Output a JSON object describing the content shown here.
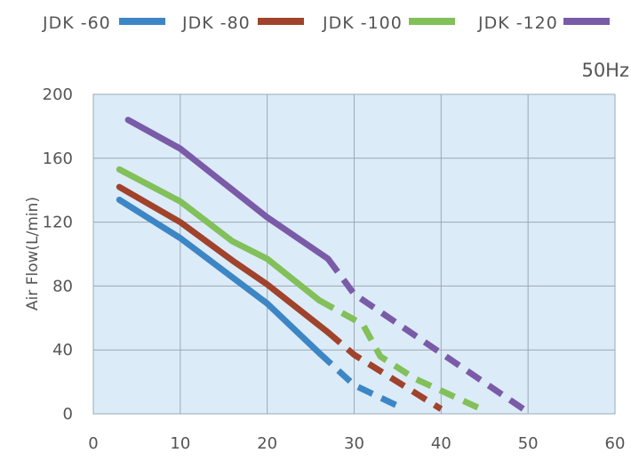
{
  "chart_data": {
    "type": "line",
    "title": "",
    "annotation": "50Hz",
    "xlabel": "",
    "ylabel": "Air Flow(L/min)",
    "xlim": [
      0,
      60
    ],
    "ylim": [
      0,
      200
    ],
    "xticks": [
      0,
      10,
      20,
      30,
      40,
      50,
      60
    ],
    "yticks": [
      0,
      40,
      80,
      120,
      160,
      200
    ],
    "grid": true,
    "legend_position": "top",
    "series": [
      {
        "name": "JDK -60",
        "color": "#3d86c6",
        "solid": [
          [
            3,
            134
          ],
          [
            10,
            110
          ],
          [
            20,
            69
          ],
          [
            26,
            38
          ]
        ],
        "dashed": [
          [
            26,
            38
          ],
          [
            30,
            18
          ],
          [
            35,
            5
          ]
        ]
      },
      {
        "name": "JDK -80",
        "color": "#a0432c",
        "solid": [
          [
            3,
            142
          ],
          [
            10,
            120
          ],
          [
            16,
            96
          ],
          [
            20,
            81
          ],
          [
            27,
            51
          ]
        ],
        "dashed": [
          [
            27,
            51
          ],
          [
            30,
            37
          ],
          [
            35,
            20
          ],
          [
            40,
            3
          ]
        ]
      },
      {
        "name": "JDK -100",
        "color": "#82c05a",
        "solid": [
          [
            3,
            153
          ],
          [
            10,
            133
          ],
          [
            16,
            108
          ],
          [
            20,
            97
          ],
          [
            26,
            71
          ]
        ],
        "dashed": [
          [
            26,
            71
          ],
          [
            31,
            56
          ],
          [
            33,
            36
          ],
          [
            37,
            22
          ],
          [
            45,
            2
          ]
        ]
      },
      {
        "name": "JDK -120",
        "color": "#7a5ba8",
        "solid": [
          [
            4,
            184
          ],
          [
            10,
            166
          ],
          [
            20,
            123
          ],
          [
            27,
            97
          ]
        ],
        "dashed": [
          [
            27,
            97
          ],
          [
            30,
            75
          ],
          [
            40,
            38
          ],
          [
            50,
            1
          ]
        ]
      }
    ]
  }
}
